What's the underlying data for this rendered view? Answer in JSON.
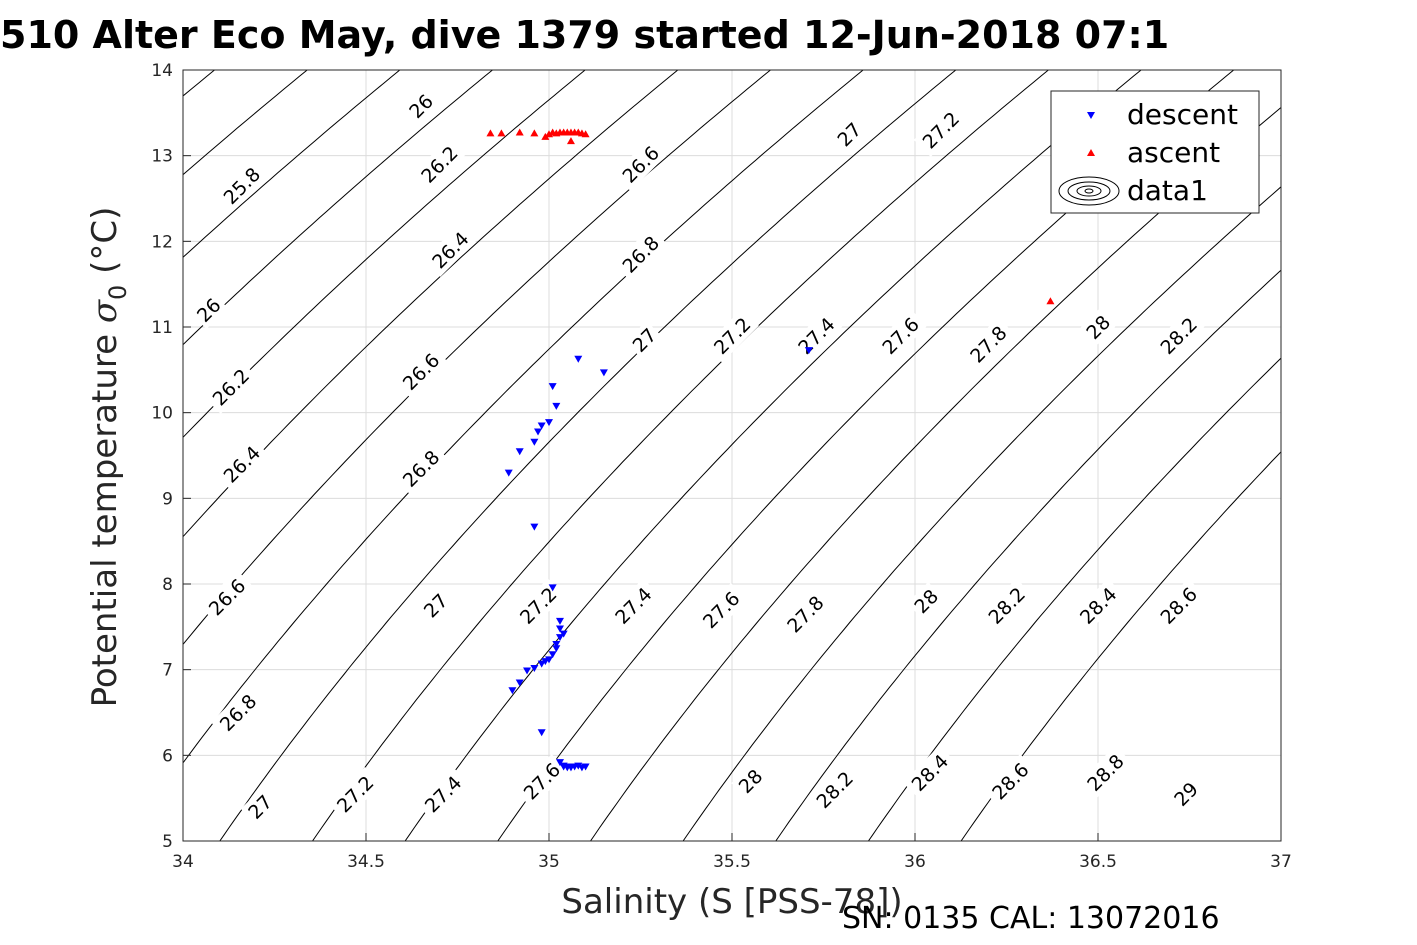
{
  "chart_data": {
    "type": "scatter",
    "title": "510 Alter Eco May, dive 1379 started 12-Jun-2018 07:1",
    "xlabel": "Salinity (S [PSS-78])",
    "ylabel": "Potential temperature σ₀ (°C)",
    "ylabel_main": "Potential temperature ",
    "ylabel_sigma": "σ",
    "ylabel_sub": "0",
    "ylabel_unit": " (°C)",
    "xlim": [
      34,
      37
    ],
    "ylim": [
      5,
      14
    ],
    "xticks": [
      "34",
      "34.5",
      "35",
      "35.5",
      "36",
      "36.5",
      "37"
    ],
    "yticks": [
      "5",
      "6",
      "7",
      "8",
      "9",
      "10",
      "11",
      "12",
      "13",
      "14"
    ],
    "grid": true,
    "legend_position": "top-right",
    "legend": [
      "descent",
      "ascent",
      "data1"
    ],
    "footer": "SN: 0135  CAL: 13072016",
    "contours": {
      "description": "density isolines sigma0",
      "levels": [
        "25.8",
        "26",
        "26.2",
        "26.4",
        "26.6",
        "26.8",
        "27",
        "27.2",
        "27.4",
        "27.6",
        "27.8",
        "28",
        "28.2",
        "28.4",
        "28.6",
        "28.8",
        "29"
      ],
      "labels": [
        {
          "text": "26",
          "s": 34.65,
          "t": 13.58
        },
        {
          "text": "25.8",
          "s": 34.16,
          "t": 12.65
        },
        {
          "text": "26.2",
          "s": 34.7,
          "t": 12.9
        },
        {
          "text": "26.6",
          "s": 35.25,
          "t": 12.9
        },
        {
          "text": "26.4",
          "s": 34.73,
          "t": 11.9
        },
        {
          "text": "26.8",
          "s": 35.25,
          "t": 11.85
        },
        {
          "text": "26",
          "s": 34.07,
          "t": 11.2
        },
        {
          "text": "26.2",
          "s": 34.13,
          "t": 10.3
        },
        {
          "text": "26.6",
          "s": 34.65,
          "t": 10.48
        },
        {
          "text": "27",
          "s": 35.26,
          "t": 10.85
        },
        {
          "text": "27.2",
          "s": 35.5,
          "t": 10.9
        },
        {
          "text": "27.4",
          "s": 35.73,
          "t": 10.9
        },
        {
          "text": "27.6",
          "s": 35.96,
          "t": 10.9
        },
        {
          "text": "27.8",
          "s": 36.2,
          "t": 10.8
        },
        {
          "text": "28",
          "s": 36.5,
          "t": 11.0
        },
        {
          "text": "28.2",
          "s": 36.72,
          "t": 10.9
        },
        {
          "text": "27",
          "s": 35.82,
          "t": 13.25
        },
        {
          "text": "27.2",
          "s": 36.07,
          "t": 13.3
        },
        {
          "text": "26.4",
          "s": 34.16,
          "t": 9.4
        },
        {
          "text": "26.8",
          "s": 34.65,
          "t": 9.35
        },
        {
          "text": "27",
          "s": 34.69,
          "t": 7.75
        },
        {
          "text": "27.2",
          "s": 34.97,
          "t": 7.75
        },
        {
          "text": "27.4",
          "s": 35.23,
          "t": 7.75
        },
        {
          "text": "27.6",
          "s": 35.47,
          "t": 7.7
        },
        {
          "text": "27.8",
          "s": 35.7,
          "t": 7.65
        },
        {
          "text": "28",
          "s": 36.03,
          "t": 7.8
        },
        {
          "text": "28.2",
          "s": 36.25,
          "t": 7.75
        },
        {
          "text": "28.4",
          "s": 36.5,
          "t": 7.75
        },
        {
          "text": "28.6",
          "s": 36.72,
          "t": 7.75
        },
        {
          "text": "26.6",
          "s": 34.12,
          "t": 7.85
        },
        {
          "text": "26.8",
          "s": 34.15,
          "t": 6.5
        },
        {
          "text": "27",
          "s": 34.21,
          "t": 5.4
        },
        {
          "text": "27.2",
          "s": 34.47,
          "t": 5.55
        },
        {
          "text": "27.4",
          "s": 34.71,
          "t": 5.55
        },
        {
          "text": "27.6",
          "s": 34.98,
          "t": 5.7
        },
        {
          "text": "28",
          "s": 35.55,
          "t": 5.7
        },
        {
          "text": "28.2",
          "s": 35.78,
          "t": 5.6
        },
        {
          "text": "28.4",
          "s": 36.04,
          "t": 5.8
        },
        {
          "text": "28.6",
          "s": 36.26,
          "t": 5.7
        },
        {
          "text": "28.8",
          "s": 36.52,
          "t": 5.8
        },
        {
          "text": "29",
          "s": 36.74,
          "t": 5.55
        }
      ]
    },
    "series": [
      {
        "name": "descent",
        "marker": "triangle-down",
        "color": "#0000ff",
        "points": [
          [
            35.08,
            10.63
          ],
          [
            35.15,
            10.47
          ],
          [
            35.01,
            10.31
          ],
          [
            35.02,
            10.08
          ],
          [
            34.98,
            9.85
          ],
          [
            35.0,
            9.89
          ],
          [
            34.97,
            9.78
          ],
          [
            34.96,
            9.66
          ],
          [
            34.92,
            9.55
          ],
          [
            34.89,
            9.3
          ],
          [
            35.71,
            10.73
          ],
          [
            34.96,
            8.67
          ],
          [
            35.01,
            7.96
          ],
          [
            35.03,
            7.57
          ],
          [
            35.03,
            7.48
          ],
          [
            35.04,
            7.42
          ],
          [
            35.03,
            7.38
          ],
          [
            35.02,
            7.3
          ],
          [
            35.02,
            7.25
          ],
          [
            35.01,
            7.18
          ],
          [
            35.0,
            7.12
          ],
          [
            34.99,
            7.1
          ],
          [
            34.98,
            7.07
          ],
          [
            34.96,
            7.02
          ],
          [
            34.94,
            6.99
          ],
          [
            34.92,
            6.85
          ],
          [
            34.9,
            6.76
          ],
          [
            34.98,
            6.27
          ],
          [
            35.03,
            5.92
          ],
          [
            35.04,
            5.88
          ],
          [
            35.05,
            5.87
          ],
          [
            35.06,
            5.86
          ],
          [
            35.07,
            5.87
          ],
          [
            35.08,
            5.88
          ],
          [
            35.1,
            5.87
          ],
          [
            35.09,
            5.86
          ],
          [
            35.06,
            5.87
          ],
          [
            35.05,
            5.86
          ],
          [
            35.04,
            5.87
          ]
        ]
      },
      {
        "name": "ascent",
        "marker": "triangle-up",
        "color": "#ff0000",
        "points": [
          [
            34.84,
            13.26
          ],
          [
            34.87,
            13.26
          ],
          [
            34.92,
            13.27
          ],
          [
            34.96,
            13.26
          ],
          [
            34.99,
            13.22
          ],
          [
            35.0,
            13.25
          ],
          [
            35.01,
            13.27
          ],
          [
            35.02,
            13.26
          ],
          [
            35.03,
            13.27
          ],
          [
            35.04,
            13.27
          ],
          [
            35.05,
            13.27
          ],
          [
            35.06,
            13.27
          ],
          [
            35.07,
            13.27
          ],
          [
            35.08,
            13.27
          ],
          [
            35.09,
            13.26
          ],
          [
            35.1,
            13.25
          ],
          [
            35.06,
            13.17
          ],
          [
            36.37,
            11.3
          ]
        ]
      }
    ]
  }
}
